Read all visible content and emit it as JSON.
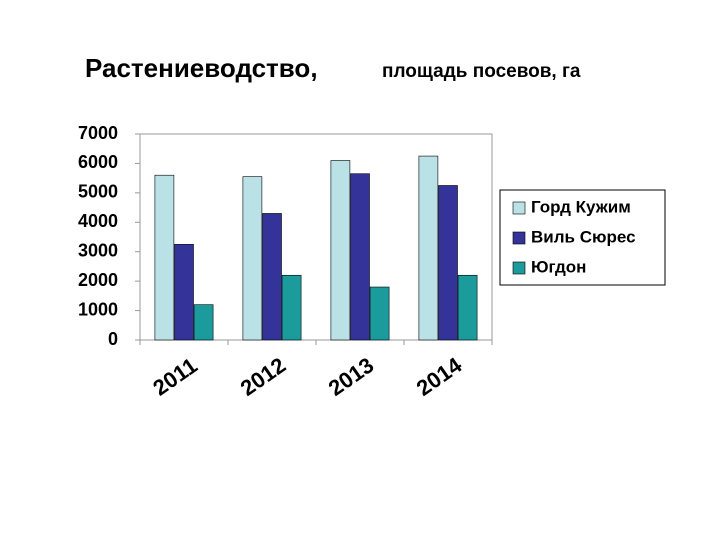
{
  "chart_data": {
    "type": "bar",
    "title": "Растениеводство,",
    "subtitle": "площадь посевов, га",
    "categories": [
      "2011",
      "2012",
      "2013",
      "2014"
    ],
    "series": [
      {
        "name": "Горд Кужим",
        "color": "#b9e1e6",
        "values": [
          5600,
          5550,
          6100,
          6250
        ]
      },
      {
        "name": "Виль Сюрес",
        "color": "#333399",
        "values": [
          3250,
          4300,
          5650,
          5250
        ]
      },
      {
        "name": "Югдон",
        "color": "#1b9b9b",
        "values": [
          1200,
          2200,
          1800,
          2200
        ]
      }
    ],
    "ylim": [
      0,
      7000
    ],
    "yticks": [
      0,
      1000,
      2000,
      3000,
      4000,
      5000,
      6000,
      7000
    ],
    "legend": "right"
  }
}
